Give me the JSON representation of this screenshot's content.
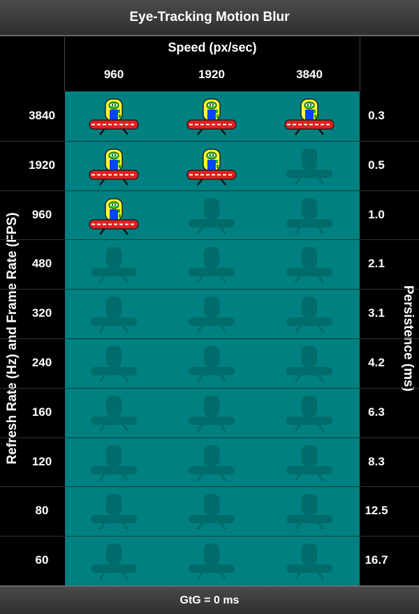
{
  "title": "Eye-Tracking Motion Blur",
  "speed_axis_label": "Speed (px/sec)",
  "speeds": [
    "960",
    "1920",
    "3840"
  ],
  "left_axis_label": "Refresh Rate (Hz) and Frame Rate (FPS)",
  "right_axis_label": "Persistence (ms)",
  "footer": "GtG = 0 ms",
  "rows": [
    {
      "rate": "3840",
      "persistence": "0.3"
    },
    {
      "rate": "1920",
      "persistence": "0.5"
    },
    {
      "rate": "960",
      "persistence": "1.0"
    },
    {
      "rate": "480",
      "persistence": "2.1"
    },
    {
      "rate": "320",
      "persistence": "3.1"
    },
    {
      "rate": "240",
      "persistence": "4.2"
    },
    {
      "rate": "160",
      "persistence": "6.3"
    },
    {
      "rate": "120",
      "persistence": "8.3"
    },
    {
      "rate": "80",
      "persistence": "12.5"
    },
    {
      "rate": "60",
      "persistence": "16.7"
    }
  ],
  "colors": {
    "background": "#008080",
    "ufo_red": "#e41e1e",
    "dome_yellow": "#ffff33",
    "alien_green": "#33cc33",
    "alien_blue": "#0044ff"
  },
  "icons": {
    "sprite": "ufo-alien-icon",
    "placeholder": "ufo-silhouette-icon"
  }
}
